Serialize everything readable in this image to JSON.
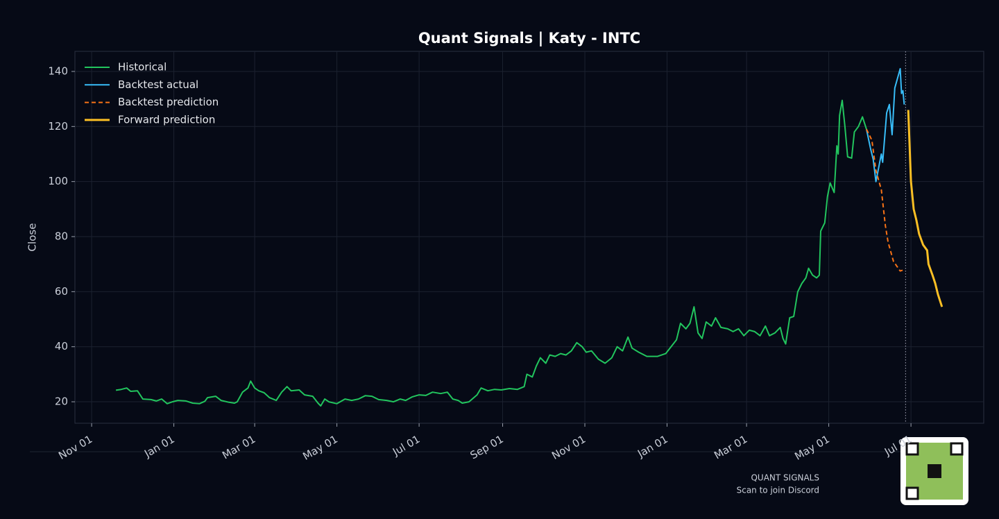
{
  "chart_data": {
    "type": "line",
    "title": "Quant Signals | Katy - INTC",
    "ylabel": "Close",
    "xlim": [
      -12.4,
      662
    ],
    "ylim": [
      12.2,
      147.3
    ],
    "xticks": [
      {
        "value": 0,
        "label": "Nov 01"
      },
      {
        "value": 61,
        "label": "Jan 01"
      },
      {
        "value": 121,
        "label": "Mar 01"
      },
      {
        "value": 182,
        "label": "May 01"
      },
      {
        "value": 243,
        "label": "Jul 01"
      },
      {
        "value": 305,
        "label": "Sep 01"
      },
      {
        "value": 366,
        "label": "Nov 01"
      },
      {
        "value": 427,
        "label": "Jan 01"
      },
      {
        "value": 486,
        "label": "Mar 01"
      },
      {
        "value": 547,
        "label": "May 01"
      },
      {
        "value": 608,
        "label": "Jul 01"
      }
    ],
    "yticks": [
      20,
      40,
      60,
      80,
      100,
      120,
      140
    ],
    "grid": true,
    "legend": "upper left",
    "vline_x": 604,
    "series": [
      {
        "name": "Historical",
        "color": "#22c55e",
        "dash": false,
        "x": [
          18,
          22,
          26,
          29,
          34,
          38,
          44,
          48,
          52,
          56,
          60,
          64,
          70,
          75,
          80,
          84,
          86,
          92,
          96,
          102,
          106,
          108,
          112,
          116,
          118,
          121,
          124,
          128,
          132,
          137,
          141,
          145,
          148,
          154,
          158,
          164,
          168,
          170,
          173,
          176,
          182,
          188,
          193,
          198,
          203,
          208,
          213,
          219,
          224,
          229,
          233,
          238,
          243,
          248,
          253,
          259,
          264,
          268,
          272,
          275,
          280,
          286,
          289,
          294,
          299,
          304,
          310,
          316,
          321,
          323,
          327,
          330,
          333,
          337,
          340,
          344,
          348,
          352,
          356,
          360,
          364,
          367,
          371,
          376,
          381,
          386,
          390,
          394,
          398,
          401,
          406,
          412,
          420,
          426,
          430,
          434,
          437,
          441,
          444,
          447,
          450,
          453,
          456,
          460,
          463,
          467,
          472,
          476,
          480,
          484,
          488,
          492,
          496,
          500,
          503,
          507,
          511,
          513,
          515,
          518,
          521,
          524,
          527,
          530,
          532,
          535,
          538,
          540,
          541,
          544,
          546,
          548,
          551,
          553,
          554,
          555,
          557,
          559,
          561,
          564,
          566,
          569,
          572,
          575
        ],
        "values": [
          24.2,
          24.5,
          25,
          23.8,
          24,
          21,
          20.8,
          20.3,
          21,
          19.3,
          20,
          20.5,
          20.3,
          19.5,
          19.3,
          20.2,
          21.5,
          22,
          20.5,
          19.8,
          19.5,
          20,
          23.5,
          25,
          27.5,
          25,
          24,
          23.3,
          21.5,
          20.5,
          23.5,
          25.5,
          24,
          24.3,
          22.5,
          22,
          19.5,
          18.5,
          21,
          20,
          19.3,
          21,
          20.5,
          21,
          22.2,
          22,
          20.8,
          20.5,
          20,
          21,
          20.5,
          21.8,
          22.5,
          22.3,
          23.5,
          23,
          23.5,
          21,
          20.5,
          19.5,
          20,
          22.5,
          25,
          24,
          24.5,
          24.3,
          24.8,
          24.5,
          25.5,
          30,
          29,
          33,
          36,
          34,
          37,
          36.5,
          37.5,
          37,
          38.5,
          41.5,
          40,
          38,
          38.5,
          35.5,
          34,
          36,
          40,
          38.5,
          43.5,
          39.5,
          38,
          36.5,
          36.5,
          37.5,
          40,
          42.5,
          48.5,
          46.5,
          48.5,
          54.5,
          45,
          43,
          49,
          47.5,
          50.5,
          47,
          46.5,
          45.5,
          46.5,
          44,
          46,
          45.5,
          44,
          47.5,
          44,
          45,
          47,
          43,
          41,
          50.5,
          51,
          60,
          63,
          65,
          68.5,
          66,
          65,
          66,
          82,
          85,
          94.5,
          99.5,
          96,
          113,
          110,
          124,
          129.5,
          120,
          109,
          108.5,
          118,
          120,
          123.5,
          119
        ]
      },
      {
        "name": "Backtest actual",
        "color": "#38bdf8",
        "dash": false,
        "x": [
          575,
          578,
          580,
          582,
          586,
          587,
          590,
          592,
          594,
          596,
          600,
          601,
          602,
          603
        ],
        "values": [
          119,
          112,
          108,
          100,
          110,
          107,
          125,
          128,
          117,
          134,
          141,
          132,
          133,
          128
        ]
      },
      {
        "name": "Backtest prediction",
        "color": "#f97316",
        "dash": true,
        "x": [
          575,
          579,
          582,
          586,
          589,
          591,
          595,
          600,
          603
        ],
        "values": [
          119,
          115,
          104,
          97,
          84,
          78,
          71,
          67.5,
          68
        ]
      },
      {
        "name": "Forward prediction",
        "color": "#fbbf24",
        "dash": false,
        "x": [
          606,
          608,
          610,
          612,
          614,
          617,
          620,
          621,
          624,
          626,
          628,
          631
        ],
        "values": [
          126,
          100,
          90,
          86,
          81,
          77,
          75,
          70,
          66,
          63,
          59,
          54.5
        ]
      }
    ]
  },
  "footer": {
    "brand": "QUANT SIGNALS",
    "cta": "Scan to join Discord"
  }
}
